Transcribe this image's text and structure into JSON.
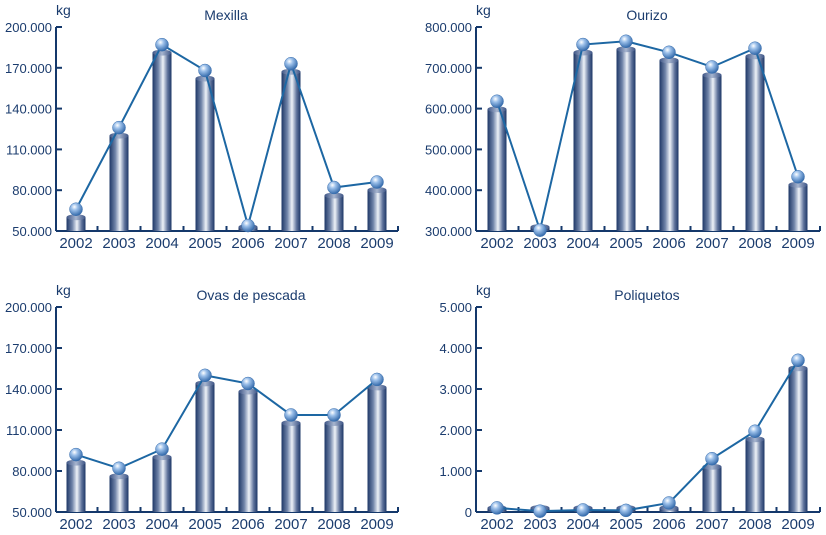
{
  "colors": {
    "axis": "#14386b",
    "text": "#1b3c6e",
    "line": "#1d67a3",
    "bar_dark": "#1e3766",
    "bar_mid": "#6f83a8",
    "bar_light": "#eef2f8",
    "ball": "#5b8fcf"
  },
  "chart_data": [
    {
      "type": "bar+line",
      "title": "Mexilla",
      "ylabel": "kg",
      "categories": [
        "2002",
        "2003",
        "2004",
        "2005",
        "2006",
        "2007",
        "2008",
        "2009"
      ],
      "values": [
        66000,
        126000,
        187000,
        168000,
        54000,
        173000,
        82000,
        86000
      ],
      "ylim": [
        50000,
        200000
      ],
      "yticks": [
        50000,
        80000,
        110000,
        140000,
        170000,
        200000
      ],
      "ytick_labels": [
        "50.000",
        "80.000",
        "110.000",
        "140.000",
        "170.000",
        "200.000"
      ],
      "grid": false
    },
    {
      "type": "bar+line",
      "title": "Ourizo",
      "ylabel": "kg",
      "categories": [
        "2002",
        "2003",
        "2004",
        "2005",
        "2006",
        "2007",
        "2008",
        "2009"
      ],
      "values": [
        618000,
        302000,
        757000,
        765000,
        738000,
        702000,
        748000,
        433000
      ],
      "ylim": [
        300000,
        800000
      ],
      "yticks": [
        300000,
        400000,
        500000,
        600000,
        700000,
        800000
      ],
      "ytick_labels": [
        "300.000",
        "400.000",
        "500.000",
        "600.000",
        "700.000",
        "800.000"
      ],
      "grid": false
    },
    {
      "type": "bar+line",
      "title": "Ovas de pescada",
      "ylabel": "kg",
      "categories": [
        "2002",
        "2003",
        "2004",
        "2005",
        "2006",
        "2007",
        "2008",
        "2009"
      ],
      "values": [
        92000,
        82000,
        96000,
        150000,
        144000,
        121000,
        121000,
        147000
      ],
      "ylim": [
        50000,
        200000
      ],
      "yticks": [
        50000,
        80000,
        110000,
        140000,
        170000,
        200000
      ],
      "ytick_labels": [
        "50.000",
        "80.000",
        "110.000",
        "140.000",
        "170.000",
        "200.000"
      ],
      "grid": false
    },
    {
      "type": "bar+line",
      "title": "Poliquetos",
      "ylabel": "kg",
      "categories": [
        "2002",
        "2003",
        "2004",
        "2005",
        "2006",
        "2007",
        "2008",
        "2009"
      ],
      "values": [
        100,
        20,
        50,
        40,
        220,
        1300,
        1970,
        3700
      ],
      "ylim": [
        0,
        5000
      ],
      "yticks": [
        0,
        1000,
        2000,
        3000,
        4000,
        5000
      ],
      "ytick_labels": [
        "0",
        "1.000",
        "2.000",
        "3.000",
        "4.000",
        "5.000"
      ],
      "grid": false
    }
  ]
}
